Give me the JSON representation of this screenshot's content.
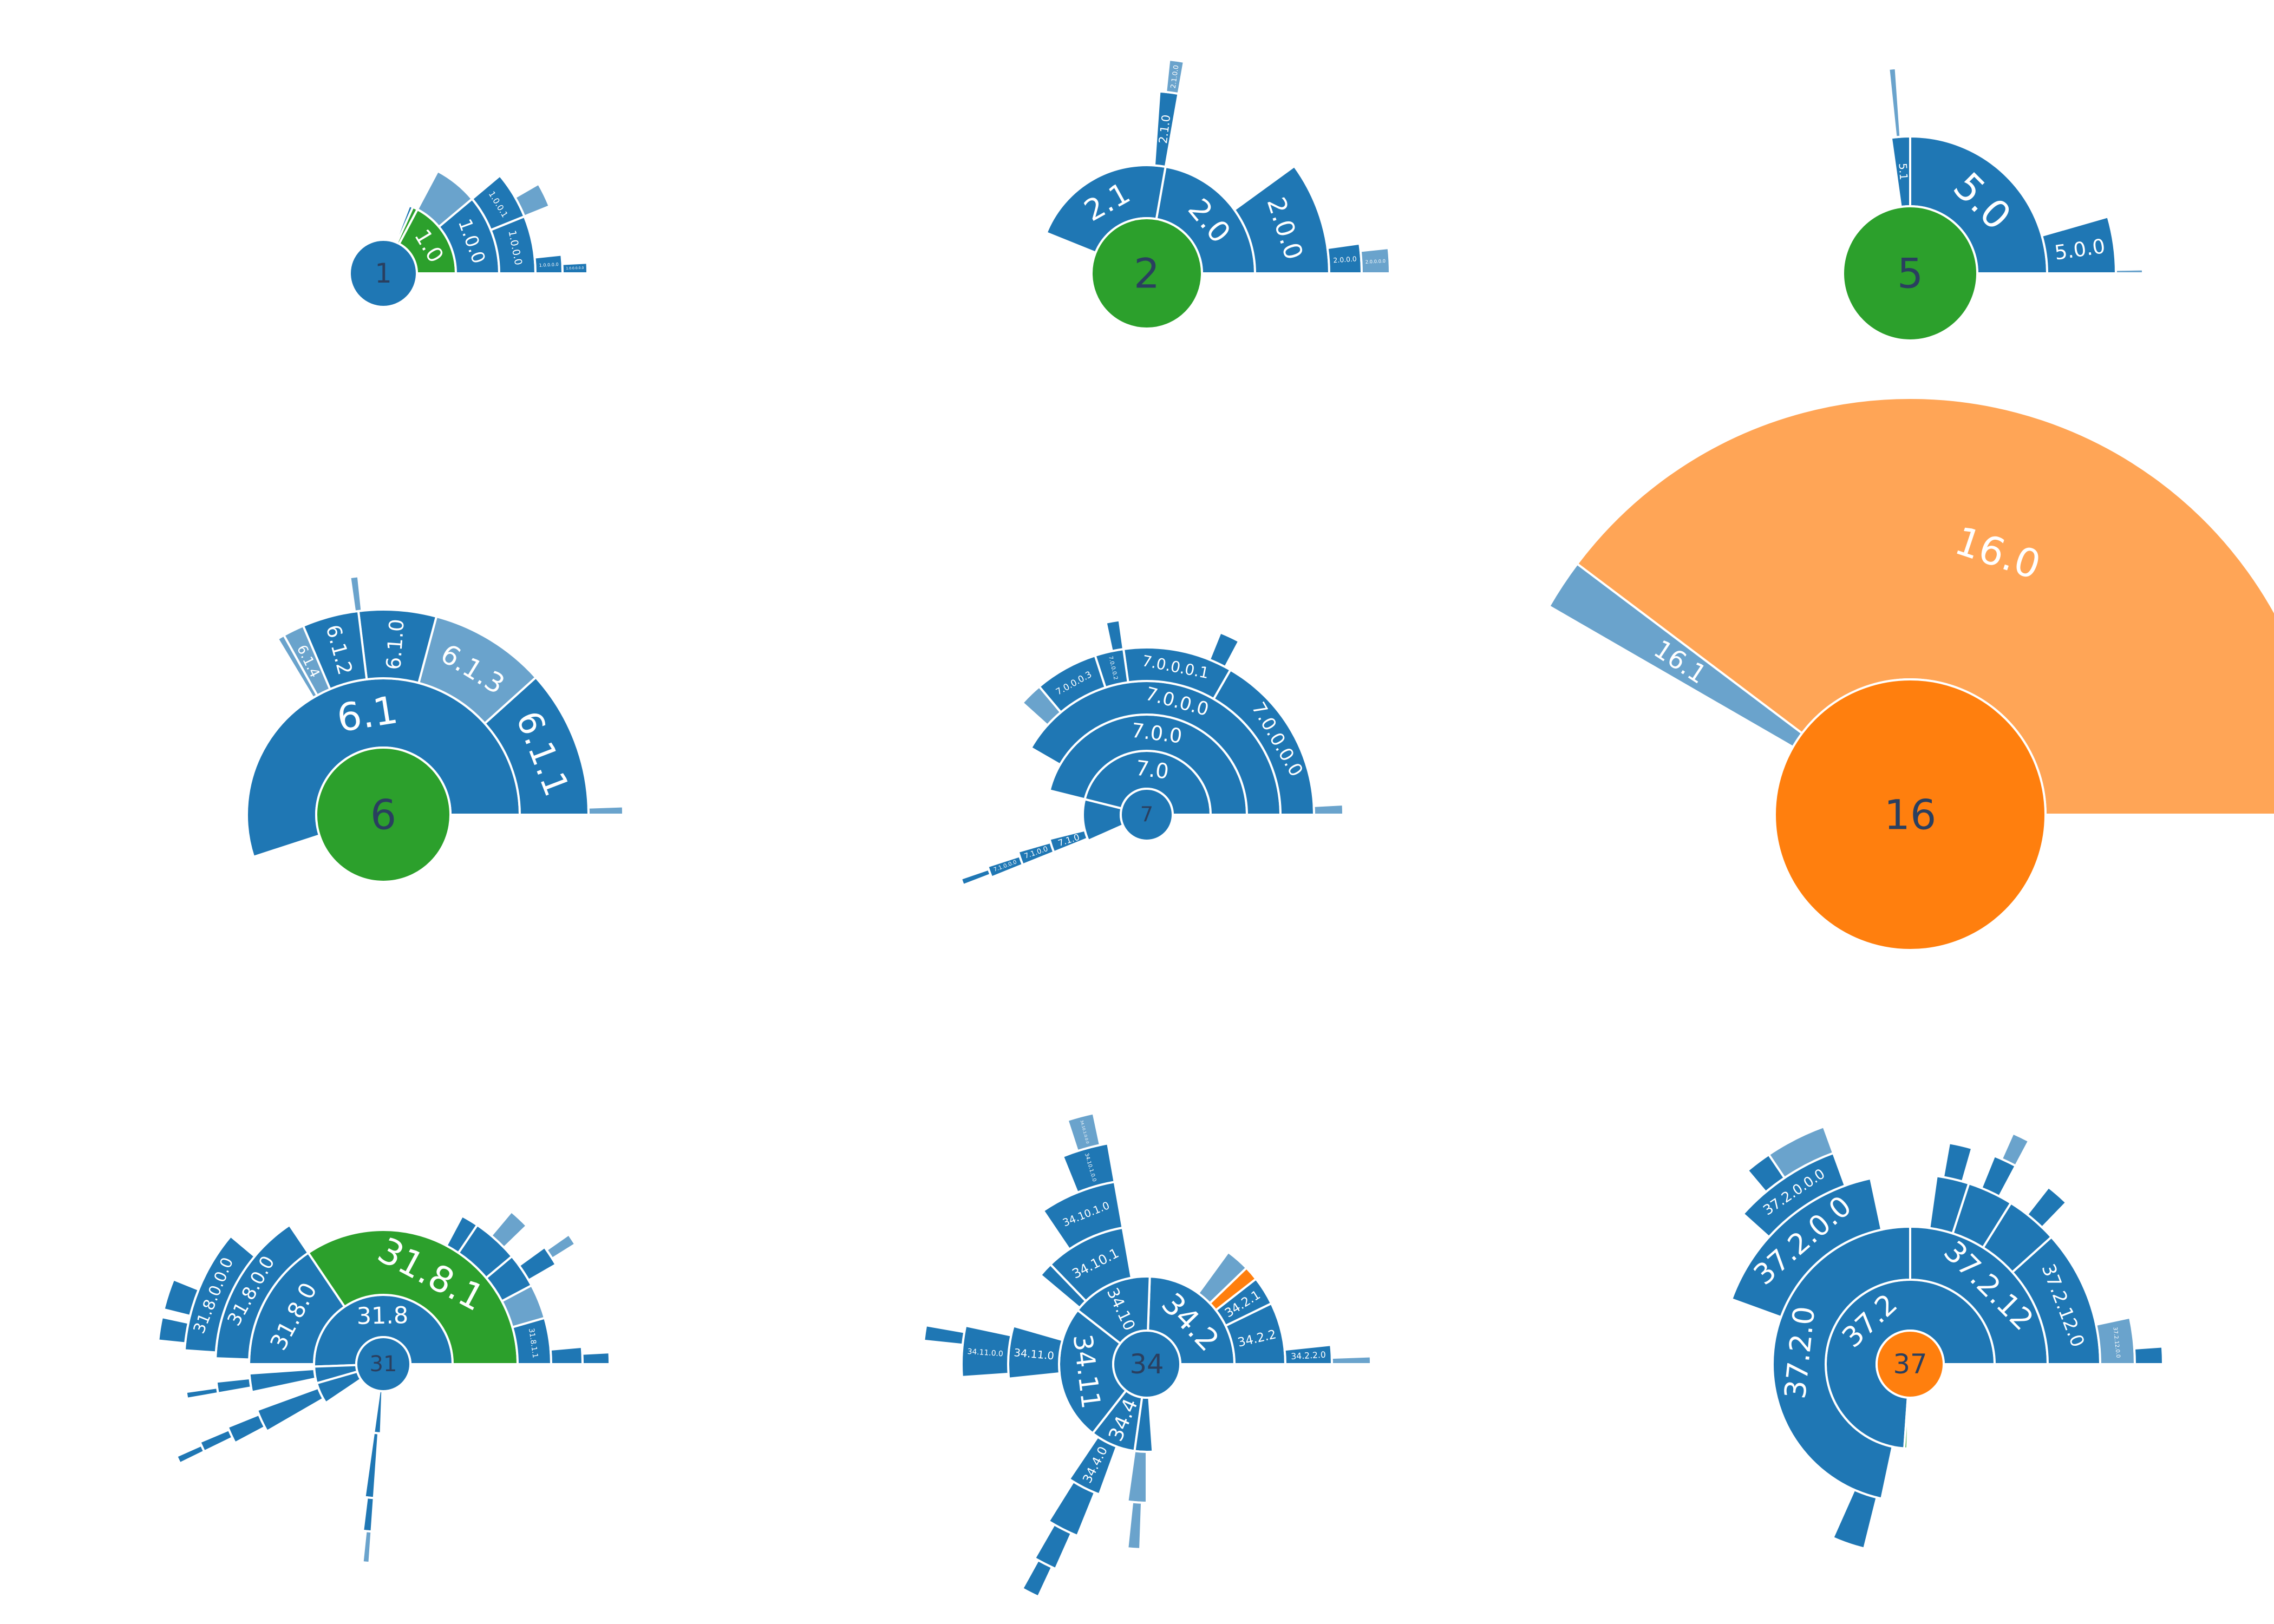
{
  "colors": {
    "blue": "#1f77b4",
    "light_blue": "#6aa3cc",
    "green": "#2ca02c",
    "orange": "#ff7f0e",
    "light_orange": "#ffa556",
    "stroke": "#ffffff",
    "center_text": "#2a3f5f"
  },
  "chart_data": [
    {
      "type": "sunburst",
      "root": {
        "label": "1",
        "color": "blue"
      },
      "rings": [
        [
          {
            "label": "1.0",
            "start": 0,
            "end": 62,
            "color": "green"
          },
          {
            "label": "",
            "start": 62,
            "end": 66,
            "color": "green"
          },
          {
            "label": "",
            "start": 66,
            "end": 69,
            "color": "blue"
          }
        ],
        [
          {
            "label": "1.0.0",
            "start": 0,
            "end": 40,
            "color": "blue"
          },
          {
            "label": "",
            "start": 40,
            "end": 62,
            "color": "light_blue"
          }
        ],
        [
          {
            "label": "1.0.0.0",
            "start": 0,
            "end": 22,
            "color": "blue"
          },
          {
            "label": "1.0.0.1",
            "start": 22,
            "end": 40,
            "color": "blue"
          }
        ],
        [
          {
            "label": "1.0.0.0.0",
            "start": 0,
            "end": 6,
            "color": "blue"
          },
          {
            "label": "",
            "start": 22,
            "end": 30,
            "color": "light_blue"
          }
        ],
        [
          {
            "label": "1.0.0.0.0.0",
            "start": 0,
            "end": 3,
            "color": "blue"
          }
        ]
      ]
    },
    {
      "type": "sunburst",
      "root": {
        "label": "2",
        "color": "green"
      },
      "rings": [
        [
          {
            "label": "2.0",
            "start": 0,
            "end": 80,
            "color": "blue"
          },
          {
            "label": "2.1",
            "start": 80,
            "end": 158,
            "color": "blue"
          }
        ],
        [
          {
            "label": "2.0.0",
            "start": 0,
            "end": 36,
            "color": "blue"
          },
          {
            "label": "2.1.0",
            "start": 80,
            "end": 86,
            "color": "blue"
          }
        ],
        [
          {
            "label": "2.0.0.0",
            "start": 0,
            "end": 8,
            "color": "blue"
          },
          {
            "label": "2.1.0.0",
            "start": 80,
            "end": 84,
            "color": "light_blue"
          }
        ],
        [
          {
            "label": "2.0.0.0.0",
            "start": 0,
            "end": 6,
            "color": "light_blue"
          }
        ]
      ]
    },
    {
      "type": "sunburst",
      "root": {
        "label": "5",
        "color": "green"
      },
      "rings": [
        [
          {
            "label": "5.0",
            "start": 0,
            "end": 90,
            "color": "blue"
          },
          {
            "label": "5.1",
            "start": 90,
            "end": 98,
            "color": "blue"
          }
        ],
        [
          {
            "label": "5.0.0",
            "start": 0,
            "end": 16,
            "color": "blue"
          },
          {
            "label": "",
            "start": 94,
            "end": 96,
            "color": "light_blue"
          }
        ],
        [
          {
            "label": "",
            "start": 0,
            "end": 1,
            "color": "light_blue"
          }
        ]
      ]
    },
    {
      "type": "sunburst",
      "root": {
        "label": "6",
        "color": "green"
      },
      "rings": [
        [
          {
            "label": "6.1",
            "start": 0,
            "end": 198,
            "color": "blue"
          }
        ],
        [
          {
            "label": "6.1.1",
            "start": 0,
            "end": 42,
            "color": "blue"
          },
          {
            "label": "6.1.3",
            "start": 42,
            "end": 75,
            "color": "light_blue"
          },
          {
            "label": "6.1.0",
            "start": 75,
            "end": 97,
            "color": "blue"
          },
          {
            "label": "6.1.2",
            "start": 97,
            "end": 113,
            "color": "blue"
          },
          {
            "label": "6.1.4",
            "start": 113,
            "end": 119,
            "color": "light_blue"
          },
          {
            "label": "",
            "start": 119,
            "end": 121,
            "color": "light_blue"
          }
        ],
        [
          {
            "label": "",
            "start": 0,
            "end": 2,
            "color": "light_blue"
          },
          {
            "label": "",
            "start": 96,
            "end": 98,
            "color": "light_blue"
          }
        ]
      ]
    },
    {
      "type": "sunburst",
      "root": {
        "label": "7",
        "color": "blue"
      },
      "rings": [
        [
          {
            "label": "7.0",
            "start": 0,
            "end": 166,
            "color": "blue"
          },
          {
            "label": "",
            "start": 166,
            "end": 204,
            "color": "blue"
          }
        ],
        [
          {
            "label": "7.0.0",
            "start": 0,
            "end": 166,
            "color": "blue"
          },
          {
            "label": "7.1.0",
            "start": 194,
            "end": 202,
            "color": "blue"
          }
        ],
        [
          {
            "label": "7.0.0.0",
            "start": 0,
            "end": 150,
            "color": "blue"
          },
          {
            "label": "7.1.0.0",
            "start": 196,
            "end": 202,
            "color": "blue"
          }
        ],
        [
          {
            "label": "7.0.0.0.0",
            "start": 0,
            "end": 60,
            "color": "blue"
          },
          {
            "label": "7.0.0.0.1",
            "start": 60,
            "end": 98,
            "color": "blue"
          },
          {
            "label": "7.0.0.0.2",
            "start": 98,
            "end": 108,
            "color": "blue"
          },
          {
            "label": "7.0.0.0.3",
            "start": 108,
            "end": 130,
            "color": "blue"
          },
          {
            "label": "",
            "start": 130,
            "end": 138,
            "color": "light_blue"
          },
          {
            "label": "7.1.0.0.0",
            "start": 198,
            "end": 202,
            "color": "blue"
          }
        ],
        [
          {
            "label": "",
            "start": 0,
            "end": 3,
            "color": "light_blue"
          },
          {
            "label": "",
            "start": 62,
            "end": 68,
            "color": "blue"
          },
          {
            "label": "",
            "start": 98,
            "end": 102,
            "color": "blue"
          },
          {
            "label": "",
            "start": 199,
            "end": 201,
            "color": "blue"
          }
        ]
      ]
    },
    {
      "type": "sunburst",
      "root": {
        "label": "16",
        "color": "orange"
      },
      "rings": [
        [
          {
            "label": "16.0",
            "start": 0,
            "end": 143,
            "color": "light_orange"
          },
          {
            "label": "16.1",
            "start": 143,
            "end": 150,
            "color": "light_blue"
          }
        ]
      ]
    },
    {
      "type": "sunburst",
      "root": {
        "label": "31",
        "color": "blue"
      },
      "rings": [
        [
          {
            "label": "31.8",
            "start": 0,
            "end": 182,
            "color": "blue"
          },
          {
            "label": "",
            "start": 182,
            "end": 196,
            "color": "blue"
          },
          {
            "label": "",
            "start": 196,
            "end": 214,
            "color": "blue"
          },
          {
            "label": "",
            "start": 262,
            "end": 268,
            "color": "blue"
          }
        ],
        [
          {
            "label": "31.8.1",
            "start": 0,
            "end": 124,
            "color": "green"
          },
          {
            "label": "31.8.0",
            "start": 124,
            "end": 180,
            "color": "blue"
          },
          {
            "label": "",
            "start": 184,
            "end": 192,
            "color": "blue"
          },
          {
            "label": "",
            "start": 200,
            "end": 210,
            "color": "blue"
          },
          {
            "label": "",
            "start": 262,
            "end": 266,
            "color": "blue"
          }
        ],
        [
          {
            "label": "31.8.1.1",
            "start": 0,
            "end": 16,
            "color": "blue"
          },
          {
            "label": "",
            "start": 16,
            "end": 28,
            "color": "light_blue"
          },
          {
            "label": "",
            "start": 28,
            "end": 40,
            "color": "blue"
          },
          {
            "label": "",
            "start": 40,
            "end": 56,
            "color": "blue"
          },
          {
            "label": "",
            "start": 56,
            "end": 62,
            "color": "blue"
          },
          {
            "label": "31.8.0.0",
            "start": 124,
            "end": 178,
            "color": "blue"
          },
          {
            "label": "",
            "start": 186,
            "end": 190,
            "color": "blue"
          },
          {
            "label": "",
            "start": 202,
            "end": 208,
            "color": "blue"
          },
          {
            "label": "",
            "start": 263,
            "end": 266,
            "color": "blue"
          }
        ],
        [
          {
            "label": "",
            "start": 0,
            "end": 5,
            "color": "blue"
          },
          {
            "label": "",
            "start": 30,
            "end": 36,
            "color": "blue"
          },
          {
            "label": "",
            "start": 44,
            "end": 50,
            "color": "light_blue"
          },
          {
            "label": "31.8.0.0.0",
            "start": 140,
            "end": 176,
            "color": "blue"
          },
          {
            "label": "",
            "start": 188,
            "end": 190,
            "color": "blue"
          },
          {
            "label": "",
            "start": 203,
            "end": 206,
            "color": "blue"
          },
          {
            "label": "",
            "start": 264,
            "end": 266,
            "color": "light_blue"
          }
        ],
        [
          {
            "label": "",
            "start": 0,
            "end": 3,
            "color": "blue"
          },
          {
            "label": "",
            "start": 32,
            "end": 35,
            "color": "light_blue"
          },
          {
            "label": "",
            "start": 158,
            "end": 166,
            "color": "blue"
          },
          {
            "label": "",
            "start": 168,
            "end": 174,
            "color": "blue"
          },
          {
            "label": "",
            "start": 204,
            "end": 206,
            "color": "blue"
          }
        ]
      ]
    },
    {
      "type": "sunburst",
      "root": {
        "label": "34",
        "color": "blue"
      },
      "rings": [
        [
          {
            "label": "34.2",
            "start": 0,
            "end": 88,
            "color": "blue"
          },
          {
            "label": "34.10",
            "start": 88,
            "end": 142,
            "color": "blue"
          },
          {
            "label": "34.11",
            "start": 142,
            "end": 232,
            "color": "blue"
          },
          {
            "label": "34.4",
            "start": 232,
            "end": 262,
            "color": "blue"
          },
          {
            "label": "",
            "start": 262,
            "end": 274,
            "color": "blue"
          }
        ],
        [
          {
            "label": "34.2.2",
            "start": 0,
            "end": 26,
            "color": "blue"
          },
          {
            "label": "34.2.1",
            "start": 26,
            "end": 38,
            "color": "blue"
          },
          {
            "label": "",
            "start": 38,
            "end": 44,
            "color": "orange"
          },
          {
            "label": "",
            "start": 44,
            "end": 54,
            "color": "light_blue"
          },
          {
            "label": "34.10.1",
            "start": 100,
            "end": 134,
            "color": "blue"
          },
          {
            "label": "",
            "start": 134,
            "end": 140,
            "color": "blue"
          },
          {
            "label": "34.11.0",
            "start": 164,
            "end": 186,
            "color": "blue"
          },
          {
            "label": "34.4.0",
            "start": 236,
            "end": 250,
            "color": "blue"
          },
          {
            "label": "",
            "start": 262,
            "end": 270,
            "color": "light_blue"
          }
        ],
        [
          {
            "label": "34.2.2.0",
            "start": 0,
            "end": 6,
            "color": "blue"
          },
          {
            "label": "34.10.1.0",
            "start": 100,
            "end": 124,
            "color": "blue"
          },
          {
            "label": "34.11.0.0",
            "start": 168,
            "end": 184,
            "color": "blue"
          },
          {
            "label": "",
            "start": 238,
            "end": 248,
            "color": "blue"
          },
          {
            "label": "",
            "start": 264,
            "end": 268,
            "color": "light_blue"
          }
        ],
        [
          {
            "label": "",
            "start": 0,
            "end": 2,
            "color": "light_blue"
          },
          {
            "label": "34.10.1.0.0",
            "start": 100,
            "end": 112,
            "color": "blue"
          },
          {
            "label": "",
            "start": 170,
            "end": 174,
            "color": "blue"
          },
          {
            "label": "",
            "start": 240,
            "end": 246,
            "color": "blue"
          }
        ],
        [
          {
            "label": "34.10.1.0.0.0",
            "start": 102,
            "end": 108,
            "color": "light_blue"
          },
          {
            "label": "",
            "start": 241,
            "end": 245,
            "color": "blue"
          }
        ]
      ]
    },
    {
      "type": "sunburst",
      "root": {
        "label": "37",
        "color": "orange"
      },
      "rings": [
        [
          {
            "label": "37.2",
            "start": 0,
            "end": 266,
            "color": "blue"
          },
          {
            "label": "",
            "start": 266,
            "end": 268,
            "color": "green"
          }
        ],
        [
          {
            "label": "37.2.12",
            "start": 0,
            "end": 90,
            "color": "blue"
          },
          {
            "label": "37.2.0",
            "start": 90,
            "end": 258,
            "color": "blue"
          }
        ],
        [
          {
            "label": "37.2.12.0",
            "start": 0,
            "end": 42,
            "color": "blue"
          },
          {
            "label": "",
            "start": 42,
            "end": 58,
            "color": "blue"
          },
          {
            "label": "",
            "start": 58,
            "end": 72,
            "color": "blue"
          },
          {
            "label": "",
            "start": 72,
            "end": 82,
            "color": "blue"
          },
          {
            "label": "37.2.0.0",
            "start": 102,
            "end": 160,
            "color": "blue"
          },
          {
            "label": "",
            "start": 246,
            "end": 256,
            "color": "blue"
          }
        ],
        [
          {
            "label": "37.2.12.0.0",
            "start": 0,
            "end": 12,
            "color": "light_blue"
          },
          {
            "label": "",
            "start": 46,
            "end": 52,
            "color": "blue"
          },
          {
            "label": "",
            "start": 62,
            "end": 68,
            "color": "blue"
          },
          {
            "label": "",
            "start": 74,
            "end": 80,
            "color": "blue"
          },
          {
            "label": "37.2.0.0.0",
            "start": 110,
            "end": 138,
            "color": "blue"
          }
        ],
        [
          {
            "label": "",
            "start": 0,
            "end": 4,
            "color": "blue"
          },
          {
            "label": "",
            "start": 62,
            "end": 66,
            "color": "light_blue"
          },
          {
            "label": "",
            "start": 110,
            "end": 124,
            "color": "light_blue"
          },
          {
            "label": "",
            "start": 124,
            "end": 130,
            "color": "blue"
          }
        ]
      ]
    }
  ]
}
